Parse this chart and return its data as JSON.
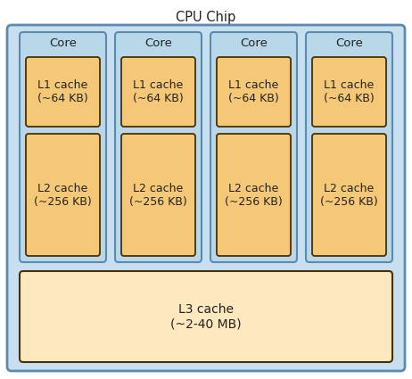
{
  "title": "CPU Chip",
  "fig_bg": "#ffffff",
  "chip_bg": "#c8dff0",
  "chip_border": "#5a8ab0",
  "core_bg": "#b8d8ea",
  "core_border": "#5a8ab0",
  "l1_bg": "#f5c878",
  "l1_border": "#4a3000",
  "l2_bg": "#f5c878",
  "l2_border": "#4a3000",
  "l3_bg": "#fde8c0",
  "l3_border": "#4a3000",
  "num_cores": 4,
  "core_label": "Core",
  "l1_label": "L1 cache\n(~64 KB)",
  "l2_label": "L2 cache\n(~256 KB)",
  "l3_label": "L3 cache\n(~2-40 MB)",
  "title_fontsize": 10.5,
  "core_fontsize": 9.5,
  "cache_fontsize": 9.0
}
